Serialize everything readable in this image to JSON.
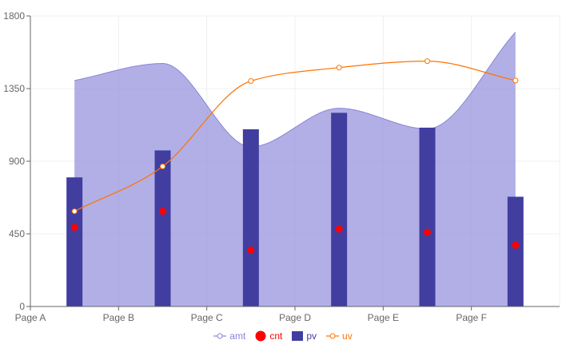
{
  "chart_data": {
    "type": "composed",
    "categories": [
      "Page A",
      "Page B",
      "Page C",
      "Page D",
      "Page E",
      "Page F"
    ],
    "ylim": [
      0,
      1800
    ],
    "yticks": [
      0,
      450,
      900,
      1350,
      1800
    ],
    "grid": true,
    "legend_position": "bottom",
    "series": [
      {
        "name": "amt",
        "type": "area",
        "color": "#8884d8",
        "values": [
          1400,
          1506,
          989,
          1228,
          1100,
          1700
        ]
      },
      {
        "name": "cnt",
        "type": "scatter",
        "color": "#ff0000",
        "values": [
          490,
          590,
          350,
          480,
          460,
          380
        ]
      },
      {
        "name": "pv",
        "type": "bar",
        "color": "#413ea0",
        "values": [
          800,
          967,
          1098,
          1200,
          1108,
          680
        ]
      },
      {
        "name": "uv",
        "type": "line",
        "color": "#ff7300",
        "values": [
          590,
          868,
          1397,
          1480,
          1520,
          1400
        ]
      }
    ]
  },
  "legend": {
    "amt": "amt",
    "cnt": "cnt",
    "pv": "pv",
    "uv": "uv"
  }
}
